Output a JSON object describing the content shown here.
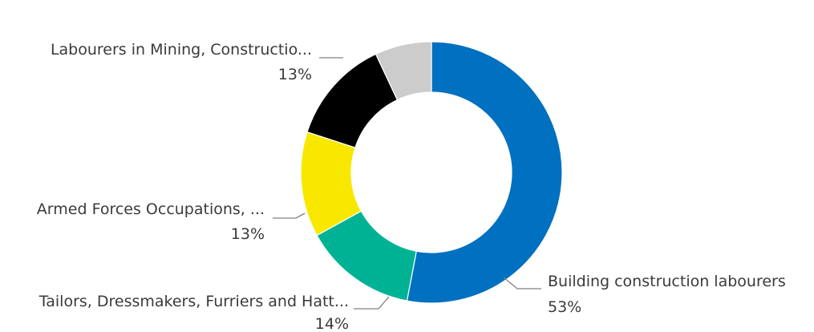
{
  "chart_data": {
    "type": "pie",
    "donut": true,
    "legend": "none",
    "slices": [
      {
        "label": "Building construction labourers",
        "display_label": "Building construction labourers",
        "value": 53,
        "value_label": "53%",
        "color": "#0070C0"
      },
      {
        "label": "Tailors, Dressmakers, Furriers and Hatters",
        "display_label": "Tailors, Dressmakers, Furriers and Hatt...",
        "value": 14,
        "value_label": "14%",
        "color": "#00B294"
      },
      {
        "label": "Armed Forces Occupations",
        "display_label": "Armed Forces Occupations, ...",
        "value": 13,
        "value_label": "13%",
        "color": "#F8E800"
      },
      {
        "label": "Labourers in Mining, Construction",
        "display_label": "Labourers in Mining, Constructio...",
        "value": 13,
        "value_label": "13%",
        "color": "#000000"
      },
      {
        "label": "",
        "display_label": "",
        "value": 7,
        "value_label": "",
        "color": "#CCCCCC"
      }
    ]
  }
}
